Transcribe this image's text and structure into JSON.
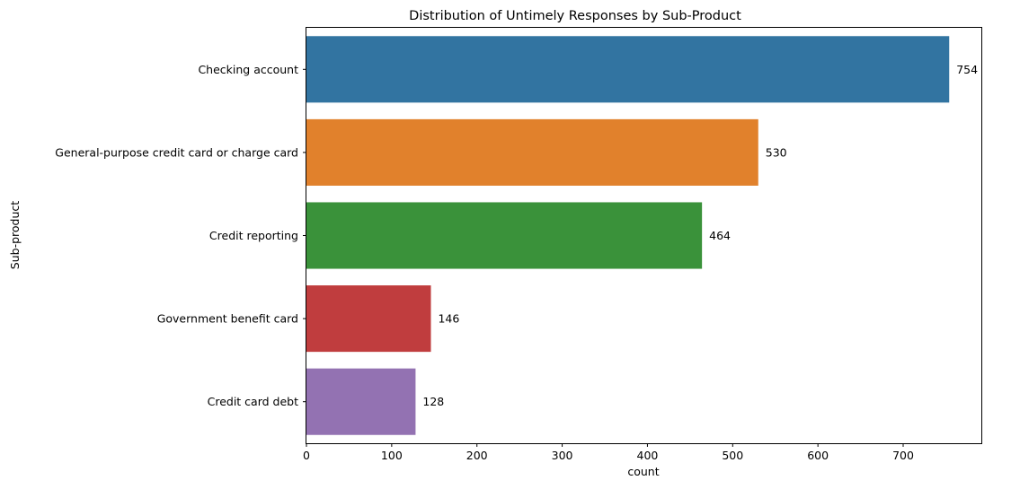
{
  "chart_data": {
    "type": "bar",
    "orientation": "horizontal",
    "title": "Distribution of Untimely Responses by Sub-Product",
    "xlabel": "count",
    "ylabel": "Sub-product",
    "categories": [
      "Checking account",
      "General-purpose credit card or charge card",
      "Credit reporting",
      "Government benefit card",
      "Credit card debt"
    ],
    "values": [
      754,
      530,
      464,
      146,
      128
    ],
    "data_labels": [
      "754",
      "530",
      "464",
      "146",
      "128"
    ],
    "colors": [
      "#3274a1",
      "#e1812c",
      "#3a923a",
      "#c03d3e",
      "#9372b2"
    ],
    "xlim": [
      0,
      791.7
    ],
    "xticks": [
      0,
      100,
      200,
      300,
      400,
      500,
      600,
      700
    ],
    "xtick_labels": [
      "0",
      "100",
      "200",
      "300",
      "400",
      "500",
      "600",
      "700"
    ],
    "grid": false,
    "legend": "none"
  }
}
